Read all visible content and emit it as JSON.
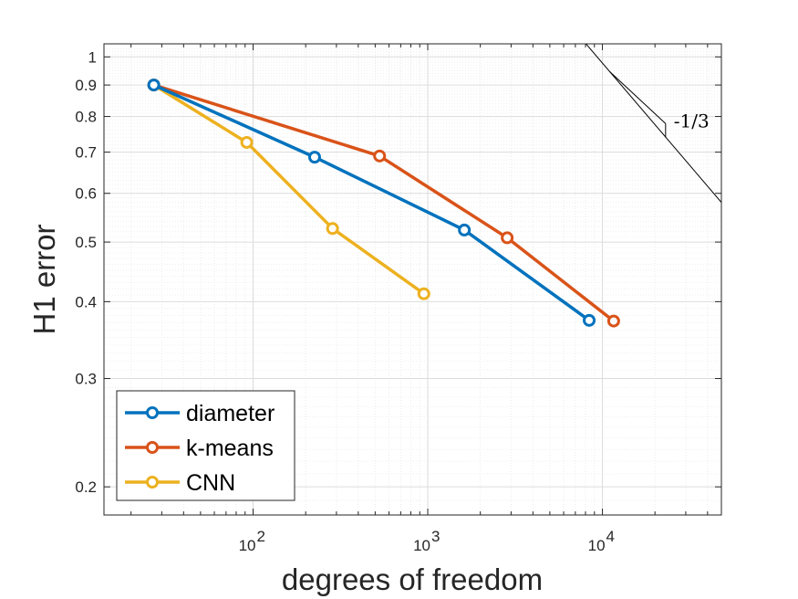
{
  "chart_data": {
    "type": "line",
    "xscale": "log",
    "yscale": "log",
    "xlabel": "degrees of freedom",
    "ylabel": "H1 error",
    "xlim": [
      14,
      48000
    ],
    "ylim": [
      0.18,
      1.05
    ],
    "xticks": [
      {
        "value": 100,
        "base": "10",
        "exp": "2"
      },
      {
        "value": 1000,
        "base": "10",
        "exp": "3"
      },
      {
        "value": 10000,
        "base": "10",
        "exp": "4"
      }
    ],
    "yticks": [
      {
        "value": 0.2,
        "label": "0.2"
      },
      {
        "value": 0.3,
        "label": "0.3"
      },
      {
        "value": 0.4,
        "label": "0.4"
      },
      {
        "value": 0.5,
        "label": "0.5"
      },
      {
        "value": 0.6,
        "label": "0.6"
      },
      {
        "value": 0.7,
        "label": "0.7"
      },
      {
        "value": 0.8,
        "label": "0.8"
      },
      {
        "value": 0.9,
        "label": "0.9"
      },
      {
        "value": 1.0,
        "label": "1"
      }
    ],
    "grid": true,
    "legend_position": "bottom-left",
    "series": [
      {
        "name": "diameter",
        "color": "#0072BD",
        "x": [
          27,
          225,
          1620,
          8400
        ],
        "y": [
          0.9,
          0.687,
          0.523,
          0.373
        ]
      },
      {
        "name": "k-means",
        "color": "#D95319",
        "x": [
          27,
          530,
          2850,
          11600
        ],
        "y": [
          0.9,
          0.69,
          0.508,
          0.372
        ]
      },
      {
        "name": "CNN",
        "color": "#EDB120",
        "x": [
          27,
          92,
          285,
          950
        ],
        "y": [
          0.9,
          0.726,
          0.526,
          0.412
        ]
      }
    ],
    "slope_annotation": {
      "label": "-1/3",
      "line": {
        "x": [
          7000,
          48000
        ],
        "y": [
          1.1,
          0.58
        ]
      },
      "triangle_corner": {
        "x": 23000,
        "y": 0.779
      },
      "triangle_start_x": 11000
    }
  }
}
